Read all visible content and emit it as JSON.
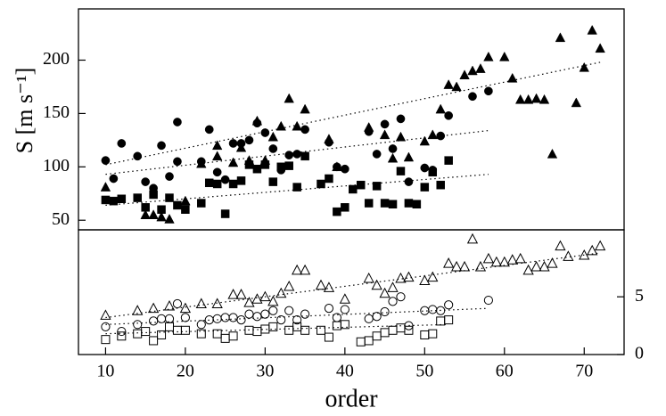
{
  "chart_data": [
    {
      "type": "scatter",
      "ylabel": "S [m s⁻¹]",
      "axis_side": "left",
      "xlim": [
        6.6,
        75
      ],
      "ylim": [
        41,
        248
      ],
      "yticks": [
        50,
        100,
        150,
        200
      ],
      "series": [
        {
          "marker": "triangle",
          "filled": true,
          "color": "#000000",
          "x": [
            10,
            15,
            16,
            17,
            18,
            20,
            22,
            24,
            24,
            26,
            27,
            28,
            29,
            30,
            31,
            32,
            33,
            34,
            35,
            38,
            39,
            43,
            45,
            46,
            47,
            48,
            50,
            51,
            52,
            53,
            54,
            55,
            56,
            57,
            58,
            60,
            61,
            62,
            63,
            64,
            65,
            66,
            67,
            69,
            70,
            71,
            72
          ],
          "values": [
            81,
            55,
            55,
            53,
            51,
            68,
            103,
            110,
            120,
            104,
            118,
            106,
            143,
            106,
            128,
            138,
            164,
            138,
            154,
            126,
            100,
            137,
            130,
            108,
            128,
            109,
            124,
            130,
            154,
            177,
            175,
            186,
            190,
            192,
            203,
            203,
            183,
            163,
            163,
            164,
            163,
            112,
            221,
            160,
            193,
            228,
            211
          ]
        },
        {
          "marker": "circle",
          "filled": true,
          "color": "#000000",
          "x": [
            10,
            11,
            12,
            14,
            15,
            16,
            17,
            18,
            19,
            19,
            22,
            23,
            24,
            25,
            26,
            27,
            28,
            29,
            30,
            31,
            32,
            33,
            34,
            35,
            38,
            39,
            40,
            43,
            44,
            45,
            46,
            47,
            48,
            50,
            51,
            52,
            53,
            56,
            58
          ],
          "values": [
            106,
            89,
            122,
            110,
            86,
            80,
            120,
            91,
            142,
            105,
            105,
            135,
            95,
            88,
            122,
            122,
            125,
            141,
            132,
            117,
            97,
            111,
            112,
            135,
            123,
            100,
            98,
            133,
            112,
            140,
            117,
            145,
            86,
            99,
            97,
            129,
            148,
            166,
            171
          ]
        },
        {
          "marker": "square",
          "filled": true,
          "color": "#000000",
          "x": [
            10,
            11,
            12,
            14,
            15,
            16,
            17,
            18,
            19,
            20,
            22,
            23,
            24,
            25,
            26,
            27,
            28,
            29,
            30,
            31,
            32,
            33,
            34,
            35,
            37,
            38,
            39,
            40,
            41,
            42,
            43,
            44,
            45,
            46,
            47,
            48,
            49,
            50,
            51,
            52,
            53
          ],
          "values": [
            69,
            68,
            70,
            71,
            62,
            74,
            60,
            71,
            64,
            60,
            66,
            85,
            84,
            56,
            84,
            87,
            102,
            98,
            102,
            86,
            100,
            101,
            81,
            110,
            84,
            89,
            58,
            62,
            79,
            83,
            66,
            82,
            66,
            65,
            96,
            66,
            65,
            81,
            95,
            83,
            106
          ]
        },
        {
          "marker": "line",
          "color": "#000000",
          "x": [
            10,
            72
          ],
          "values": [
            102,
            198
          ]
        },
        {
          "marker": "line",
          "color": "#000000",
          "x": [
            10,
            58
          ],
          "values": [
            93,
            134
          ]
        },
        {
          "marker": "line",
          "color": "#000000",
          "x": [
            10,
            58
          ],
          "values": [
            64,
            93
          ]
        }
      ]
    },
    {
      "type": "scatter",
      "xlabel": "order",
      "axis_side": "right",
      "xlim": [
        6.6,
        75
      ],
      "xticks": [
        10,
        20,
        30,
        40,
        50,
        60,
        70
      ],
      "ylim": [
        0,
        10.8
      ],
      "yticks": [
        0,
        5
      ],
      "series": [
        {
          "marker": "triangle",
          "filled": false,
          "color": "#000000",
          "x": [
            10,
            14,
            16,
            18,
            20,
            22,
            24,
            26,
            27,
            28,
            29,
            30,
            31,
            32,
            33,
            34,
            35,
            37,
            38,
            40,
            43,
            44,
            45,
            46,
            47,
            48,
            50,
            51,
            53,
            54,
            55,
            56,
            57,
            58,
            59,
            60,
            61,
            62,
            63,
            64,
            65,
            66,
            67,
            68,
            70,
            71,
            72
          ],
          "values": [
            3.4,
            3.8,
            4.0,
            4.2,
            4.0,
            4.4,
            4.4,
            5.2,
            5.2,
            4.5,
            4.8,
            5.0,
            4.6,
            5.3,
            5.9,
            7.3,
            7.3,
            6.0,
            5.8,
            4.8,
            6.6,
            6.0,
            5.3,
            5.8,
            6.6,
            6.7,
            6.4,
            6.7,
            7.9,
            7.6,
            7.6,
            10.0,
            7.6,
            8.3,
            8.0,
            8.0,
            8.2,
            8.3,
            7.3,
            7.6,
            7.6,
            7.9,
            9.4,
            8.5,
            8.6,
            9.0,
            9.4
          ]
        },
        {
          "marker": "circle",
          "filled": false,
          "color": "#000000",
          "x": [
            10,
            12,
            14,
            16,
            17,
            18,
            19,
            20,
            22,
            23,
            24,
            25,
            26,
            27,
            28,
            29,
            30,
            31,
            32,
            33,
            34,
            35,
            38,
            39,
            40,
            43,
            44,
            45,
            46,
            47,
            48,
            50,
            51,
            52,
            53,
            58
          ],
          "values": [
            2.4,
            2.0,
            2.6,
            2.9,
            3.1,
            3.1,
            4.4,
            3.2,
            2.6,
            3.0,
            3.1,
            3.2,
            3.2,
            3.0,
            3.5,
            3.3,
            3.5,
            3.8,
            3.0,
            3.8,
            3.0,
            3.5,
            4.0,
            3.2,
            3.9,
            3.1,
            3.3,
            3.7,
            4.6,
            5.0,
            2.5,
            3.8,
            3.9,
            3.8,
            4.3,
            4.7
          ]
        },
        {
          "marker": "square",
          "filled": false,
          "color": "#000000",
          "x": [
            10,
            12,
            14,
            15,
            16,
            17,
            18,
            19,
            20,
            22,
            24,
            25,
            26,
            28,
            29,
            30,
            31,
            33,
            34,
            35,
            37,
            38,
            39,
            40,
            42,
            43,
            44,
            45,
            46,
            47,
            48,
            50,
            51,
            52,
            53
          ],
          "values": [
            1.3,
            1.6,
            1.8,
            2.0,
            1.2,
            1.7,
            2.4,
            2.1,
            2.1,
            1.8,
            1.8,
            1.4,
            1.6,
            2.1,
            2.0,
            2.2,
            2.4,
            2.1,
            2.4,
            2.1,
            2.1,
            1.5,
            2.5,
            2.6,
            1.1,
            1.2,
            1.6,
            1.9,
            2.1,
            2.3,
            2.1,
            1.7,
            1.8,
            2.9,
            3.0
          ]
        },
        {
          "marker": "line",
          "color": "#000000",
          "x": [
            10,
            72
          ],
          "values": [
            3.2,
            8.8
          ]
        },
        {
          "marker": "line",
          "color": "#000000",
          "x": [
            10,
            58
          ],
          "values": [
            2.6,
            4.0
          ]
        },
        {
          "marker": "line",
          "color": "#000000",
          "x": [
            10,
            53
          ],
          "values": [
            1.8,
            2.6
          ]
        }
      ]
    }
  ]
}
